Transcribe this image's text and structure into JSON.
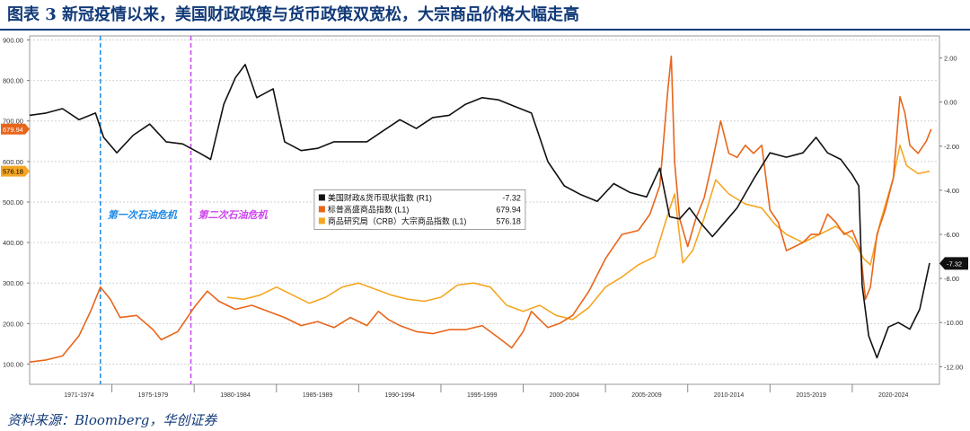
{
  "page": {
    "title": "图表 3  新冠疫情以来，美国财政政策与货币政策双宽松，大宗商品价格大幅走高",
    "source": "资料来源：Bloomberg，华创证券"
  },
  "chart_data": {
    "type": "line",
    "grid": true,
    "legend_placement": "center",
    "x_period_labels": [
      "1971-1974",
      "1975-1979",
      "1980-1984",
      "1985-1989",
      "1990-1994",
      "1995-1999",
      "2000-2004",
      "2005-2009",
      "2010-2014",
      "2015-2019",
      "2020-2024"
    ],
    "xlim": [
      1969.5,
      2024.8
    ],
    "left_axis": {
      "ylim": [
        50,
        910
      ],
      "ticks": [
        "100.00",
        "200.00",
        "300.00",
        "400.00",
        "500.00",
        "600.00",
        "700.00",
        "800.00",
        "900.00"
      ]
    },
    "right_axis": {
      "ylim": [
        -12.8,
        3.0
      ],
      "ticks": [
        "2.00",
        "0.00",
        "-2.00",
        "-4.00",
        "-6.00",
        "-8.00",
        "-10.00",
        "-12.00"
      ]
    },
    "annotations": [
      {
        "text": "第一次石油危机",
        "year": 1973.8,
        "color": "#1e88e5"
      },
      {
        "text": "第二次石油危机",
        "year": 1979.3,
        "color": "#cc44ee"
      }
    ],
    "last_value_labels": [
      {
        "text": "679.94",
        "axis": "left",
        "value": 679.94,
        "color": "#e8651a",
        "text_color": "#ffffff"
      },
      {
        "text": "576.18",
        "axis": "left",
        "value": 576.18,
        "color": "#f5a623",
        "text_color": "#000000"
      },
      {
        "text": "-7.32",
        "axis": "right",
        "value": -7.32,
        "color": "#111111",
        "text_color": "#ffffff"
      }
    ],
    "series": [
      {
        "name": "美国财政&货币现状指数 (R1)",
        "last": "-7.32",
        "axis": "right",
        "color": "#111111",
        "x": [
          1969.5,
          1970.5,
          1971.5,
          1972.5,
          1973.5,
          1974.0,
          1974.8,
          1975.8,
          1976.8,
          1977.8,
          1978.8,
          1979.8,
          1980.5,
          1981.3,
          1982.0,
          1982.6,
          1983.3,
          1984.3,
          1985.0,
          1986.0,
          1987.0,
          1988.0,
          1989.0,
          1990.0,
          1991.0,
          1992.0,
          1993.0,
          1994.0,
          1995.0,
          1996.0,
          1997.0,
          1998.0,
          1999.0,
          2000.0,
          2001.0,
          2002.0,
          2003.0,
          2004.0,
          2005.0,
          2006.0,
          2007.0,
          2007.8,
          2008.4,
          2009.0,
          2009.6,
          2010.3,
          2011.0,
          2011.7,
          2012.5,
          2013.5,
          2014.5,
          2015.5,
          2016.5,
          2017.3,
          2018.0,
          2018.8,
          2019.5,
          2019.9,
          2020.1,
          2020.5,
          2021.0,
          2021.7,
          2022.3,
          2023.0,
          2023.6,
          2024.2
        ],
        "values": [
          -0.6,
          -0.5,
          -0.3,
          -0.8,
          -0.5,
          -1.6,
          -2.3,
          -1.5,
          -1.0,
          -1.8,
          -1.9,
          -2.3,
          -2.6,
          -0.1,
          1.1,
          1.7,
          0.2,
          0.6,
          -1.8,
          -2.2,
          -2.1,
          -1.8,
          -1.8,
          -1.8,
          -1.3,
          -0.8,
          -1.2,
          -0.7,
          -0.6,
          -0.1,
          0.2,
          0.1,
          -0.2,
          -0.5,
          -2.7,
          -3.8,
          -4.2,
          -4.5,
          -3.7,
          -4.1,
          -4.3,
          -3.0,
          -5.2,
          -5.3,
          -4.8,
          -5.5,
          -6.1,
          -5.5,
          -4.8,
          -3.5,
          -2.3,
          -2.5,
          -2.3,
          -1.6,
          -2.3,
          -2.6,
          -3.3,
          -3.8,
          -8.3,
          -10.6,
          -11.6,
          -10.2,
          -10.0,
          -10.3,
          -9.4,
          -7.3
        ]
      },
      {
        "name": "标普高盛商品指数 (L1)",
        "last": "679.94",
        "axis": "left",
        "color": "#e8651a",
        "x": [
          1969.5,
          1970.5,
          1971.5,
          1972.5,
          1973.2,
          1973.8,
          1974.4,
          1975.0,
          1976.0,
          1977.0,
          1977.5,
          1978.5,
          1979.5,
          1980.3,
          1981.0,
          1982.0,
          1983.0,
          1984.0,
          1985.0,
          1986.0,
          1987.0,
          1988.0,
          1989.0,
          1990.0,
          1990.7,
          1991.3,
          1992.0,
          1993.0,
          1994.0,
          1995.0,
          1996.0,
          1997.0,
          1998.0,
          1998.8,
          1999.5,
          2000.0,
          2001.0,
          2001.7,
          2002.5,
          2003.5,
          2004.5,
          2005.5,
          2006.5,
          2007.2,
          2007.8,
          2008.3,
          2008.5,
          2008.7,
          2009.0,
          2009.5,
          2010.0,
          2010.5,
          2011.0,
          2011.5,
          2012.0,
          2012.5,
          2013.0,
          2013.5,
          2014.0,
          2014.5,
          2015.0,
          2015.5,
          2016.0,
          2016.5,
          2017.0,
          2017.5,
          2018.0,
          2018.5,
          2019.0,
          2019.5,
          2020.0,
          2020.3,
          2020.6,
          2021.0,
          2021.5,
          2022.0,
          2022.4,
          2022.7,
          2023.0,
          2023.5,
          2024.0,
          2024.3
        ],
        "values": [
          105,
          110,
          120,
          170,
          230,
          290,
          260,
          215,
          220,
          185,
          160,
          180,
          240,
          280,
          255,
          235,
          245,
          230,
          215,
          195,
          205,
          190,
          215,
          195,
          230,
          210,
          195,
          180,
          175,
          185,
          185,
          195,
          165,
          140,
          180,
          230,
          190,
          200,
          220,
          280,
          360,
          420,
          430,
          470,
          540,
          780,
          860,
          600,
          460,
          390,
          460,
          510,
          600,
          700,
          620,
          610,
          640,
          620,
          640,
          480,
          450,
          380,
          390,
          400,
          420,
          420,
          470,
          450,
          420,
          430,
          380,
          260,
          290,
          420,
          480,
          560,
          760,
          720,
          640,
          620,
          650,
          680
        ]
      },
      {
        "name": "商品研究局（CRB）大宗商品指数 (L1)",
        "last": "576.18",
        "axis": "left",
        "color": "#f5a623",
        "x": [
          1981.5,
          1982.5,
          1983.5,
          1984.5,
          1985.5,
          1986.5,
          1987.5,
          1988.5,
          1989.5,
          1990.5,
          1991.5,
          1992.5,
          1993.5,
          1994.5,
          1995.5,
          1996.5,
          1997.5,
          1998.5,
          1999.5,
          2000.5,
          2001.5,
          2002.5,
          2003.5,
          2004.5,
          2005.5,
          2006.5,
          2007.5,
          2008.3,
          2008.7,
          2009.2,
          2009.8,
          2010.5,
          2011.2,
          2012.0,
          2013.0,
          2014.0,
          2014.8,
          2015.5,
          2016.5,
          2017.5,
          2018.5,
          2019.5,
          2020.2,
          2020.6,
          2021.2,
          2022.0,
          2022.4,
          2022.8,
          2023.5,
          2024.2
        ],
        "values": [
          265,
          260,
          270,
          290,
          270,
          250,
          265,
          290,
          300,
          285,
          270,
          260,
          255,
          265,
          295,
          300,
          290,
          245,
          230,
          245,
          220,
          210,
          240,
          290,
          315,
          345,
          365,
          470,
          520,
          350,
          380,
          460,
          555,
          520,
          495,
          485,
          445,
          420,
          400,
          420,
          440,
          410,
          360,
          345,
          450,
          560,
          640,
          590,
          570,
          576
        ]
      }
    ]
  }
}
